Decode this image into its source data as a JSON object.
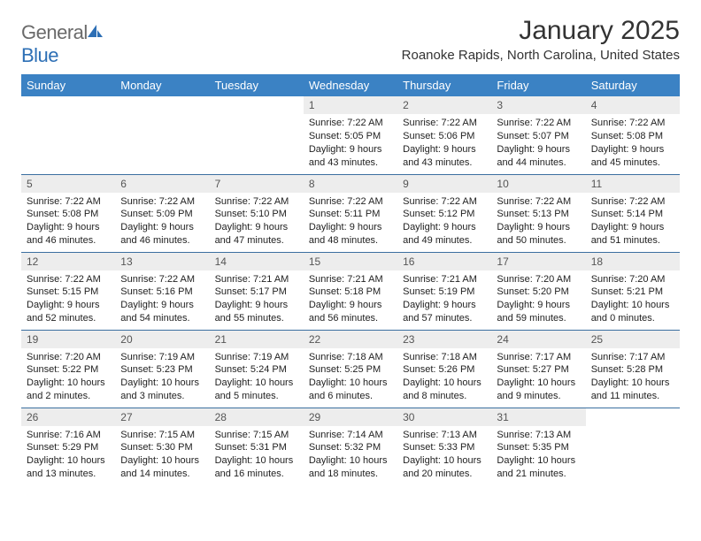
{
  "logo": {
    "text1": "General",
    "text2": "Blue"
  },
  "title": "January 2025",
  "location": "Roanoke Rapids, North Carolina, United States",
  "colors": {
    "header_bg": "#3b82c4",
    "header_text": "#ffffff",
    "daynum_bg": "#ededed",
    "row_border": "#3b6fa0",
    "logo_gray": "#6a6a6a",
    "logo_blue": "#2d6fb5"
  },
  "day_headers": [
    "Sunday",
    "Monday",
    "Tuesday",
    "Wednesday",
    "Thursday",
    "Friday",
    "Saturday"
  ],
  "weeks": [
    [
      null,
      null,
      null,
      {
        "n": "1",
        "sr": "7:22 AM",
        "ss": "5:05 PM",
        "dl": "9 hours and 43 minutes."
      },
      {
        "n": "2",
        "sr": "7:22 AM",
        "ss": "5:06 PM",
        "dl": "9 hours and 43 minutes."
      },
      {
        "n": "3",
        "sr": "7:22 AM",
        "ss": "5:07 PM",
        "dl": "9 hours and 44 minutes."
      },
      {
        "n": "4",
        "sr": "7:22 AM",
        "ss": "5:08 PM",
        "dl": "9 hours and 45 minutes."
      }
    ],
    [
      {
        "n": "5",
        "sr": "7:22 AM",
        "ss": "5:08 PM",
        "dl": "9 hours and 46 minutes."
      },
      {
        "n": "6",
        "sr": "7:22 AM",
        "ss": "5:09 PM",
        "dl": "9 hours and 46 minutes."
      },
      {
        "n": "7",
        "sr": "7:22 AM",
        "ss": "5:10 PM",
        "dl": "9 hours and 47 minutes."
      },
      {
        "n": "8",
        "sr": "7:22 AM",
        "ss": "5:11 PM",
        "dl": "9 hours and 48 minutes."
      },
      {
        "n": "9",
        "sr": "7:22 AM",
        "ss": "5:12 PM",
        "dl": "9 hours and 49 minutes."
      },
      {
        "n": "10",
        "sr": "7:22 AM",
        "ss": "5:13 PM",
        "dl": "9 hours and 50 minutes."
      },
      {
        "n": "11",
        "sr": "7:22 AM",
        "ss": "5:14 PM",
        "dl": "9 hours and 51 minutes."
      }
    ],
    [
      {
        "n": "12",
        "sr": "7:22 AM",
        "ss": "5:15 PM",
        "dl": "9 hours and 52 minutes."
      },
      {
        "n": "13",
        "sr": "7:22 AM",
        "ss": "5:16 PM",
        "dl": "9 hours and 54 minutes."
      },
      {
        "n": "14",
        "sr": "7:21 AM",
        "ss": "5:17 PM",
        "dl": "9 hours and 55 minutes."
      },
      {
        "n": "15",
        "sr": "7:21 AM",
        "ss": "5:18 PM",
        "dl": "9 hours and 56 minutes."
      },
      {
        "n": "16",
        "sr": "7:21 AM",
        "ss": "5:19 PM",
        "dl": "9 hours and 57 minutes."
      },
      {
        "n": "17",
        "sr": "7:20 AM",
        "ss": "5:20 PM",
        "dl": "9 hours and 59 minutes."
      },
      {
        "n": "18",
        "sr": "7:20 AM",
        "ss": "5:21 PM",
        "dl": "10 hours and 0 minutes."
      }
    ],
    [
      {
        "n": "19",
        "sr": "7:20 AM",
        "ss": "5:22 PM",
        "dl": "10 hours and 2 minutes."
      },
      {
        "n": "20",
        "sr": "7:19 AM",
        "ss": "5:23 PM",
        "dl": "10 hours and 3 minutes."
      },
      {
        "n": "21",
        "sr": "7:19 AM",
        "ss": "5:24 PM",
        "dl": "10 hours and 5 minutes."
      },
      {
        "n": "22",
        "sr": "7:18 AM",
        "ss": "5:25 PM",
        "dl": "10 hours and 6 minutes."
      },
      {
        "n": "23",
        "sr": "7:18 AM",
        "ss": "5:26 PM",
        "dl": "10 hours and 8 minutes."
      },
      {
        "n": "24",
        "sr": "7:17 AM",
        "ss": "5:27 PM",
        "dl": "10 hours and 9 minutes."
      },
      {
        "n": "25",
        "sr": "7:17 AM",
        "ss": "5:28 PM",
        "dl": "10 hours and 11 minutes."
      }
    ],
    [
      {
        "n": "26",
        "sr": "7:16 AM",
        "ss": "5:29 PM",
        "dl": "10 hours and 13 minutes."
      },
      {
        "n": "27",
        "sr": "7:15 AM",
        "ss": "5:30 PM",
        "dl": "10 hours and 14 minutes."
      },
      {
        "n": "28",
        "sr": "7:15 AM",
        "ss": "5:31 PM",
        "dl": "10 hours and 16 minutes."
      },
      {
        "n": "29",
        "sr": "7:14 AM",
        "ss": "5:32 PM",
        "dl": "10 hours and 18 minutes."
      },
      {
        "n": "30",
        "sr": "7:13 AM",
        "ss": "5:33 PM",
        "dl": "10 hours and 20 minutes."
      },
      {
        "n": "31",
        "sr": "7:13 AM",
        "ss": "5:35 PM",
        "dl": "10 hours and 21 minutes."
      },
      null
    ]
  ],
  "labels": {
    "sunrise": "Sunrise:",
    "sunset": "Sunset:",
    "daylight": "Daylight:"
  }
}
